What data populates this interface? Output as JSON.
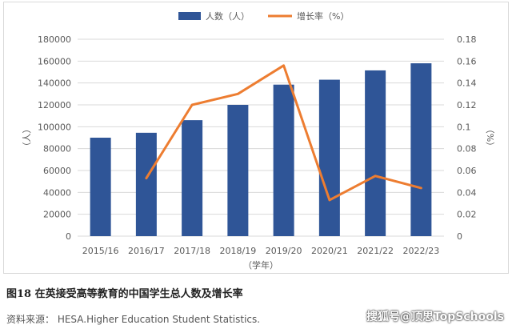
{
  "chart_data": {
    "type": "bar",
    "categories": [
      "2015/16",
      "2016/17",
      "2017/18",
      "2018/19",
      "2019/20",
      "2020/21",
      "2021/22",
      "2022/23"
    ],
    "series": [
      {
        "name": "人数（人）",
        "type": "bar",
        "axis": "left",
        "color": "#2f5597",
        "values": [
          90000,
          94500,
          106000,
          120000,
          138500,
          143000,
          151500,
          158000
        ]
      },
      {
        "name": "增长率（%）",
        "type": "line",
        "axis": "right",
        "color": "#ed7d31",
        "values": [
          null,
          0.053,
          0.12,
          0.13,
          0.156,
          0.033,
          0.055,
          0.044
        ]
      }
    ],
    "xlabel": "（学年）",
    "ylabel": "（人）",
    "y2label": "（%）",
    "ylim": [
      0,
      180000
    ],
    "y2lim": [
      0,
      0.18
    ],
    "yticks": [
      "0",
      "20000",
      "40000",
      "60000",
      "80000",
      "100000",
      "120000",
      "140000",
      "160000",
      "180000"
    ],
    "y2ticks": [
      "0",
      "0.02",
      "0.04",
      "0.06",
      "0.08",
      "0.1",
      "0.12",
      "0.14",
      "0.16",
      "0.18"
    ],
    "grid": true,
    "legend": "top"
  },
  "caption": "图18 在英接受高等教育的中国学生总人数及增长率",
  "source": "资料来源： HESA.Higher Education Student Statistics.",
  "watermark": "搜狐号@顶思TopSchools"
}
